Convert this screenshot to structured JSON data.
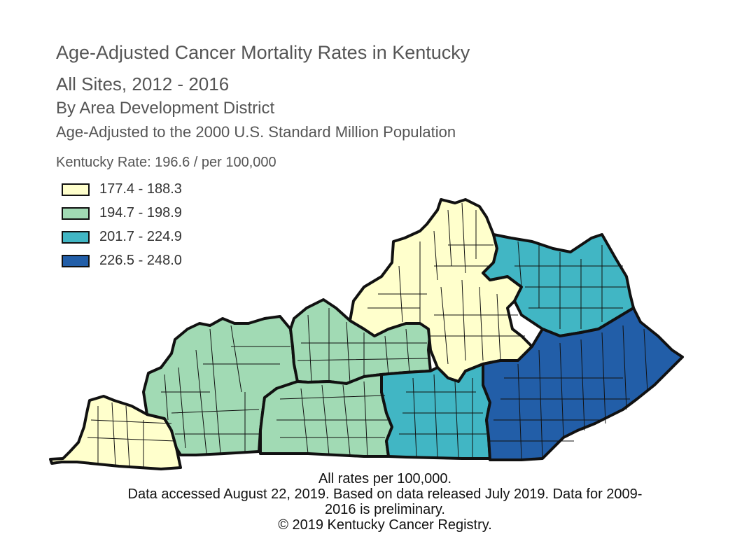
{
  "titles": {
    "main": "Age-Adjusted Cancer Mortality Rates in Kentucky",
    "sites": "All Sites, 2012 - 2016",
    "grouping": "By Area Development District",
    "standard": "Age-Adjusted to the 2000 U.S. Standard Million Population"
  },
  "state_rate": "Kentucky Rate: 196.6 / per 100,000",
  "legend": [
    {
      "label": "177.4 - 188.3",
      "color": "#ffffcc"
    },
    {
      "label": "194.7 - 198.9",
      "color": "#a1dab4"
    },
    {
      "label": "201.7 - 224.9",
      "color": "#41b6c4"
    },
    {
      "label": "226.5 - 248.0",
      "color": "#225ea8"
    }
  ],
  "footer": {
    "line1": "All rates per 100,000.",
    "line2": "Data accessed August 22, 2019. Based on data released July 2019. Data for 2009-",
    "line3": "2016 is preliminary.",
    "line4": "© 2019 Kentucky Cancer Registry."
  }
}
